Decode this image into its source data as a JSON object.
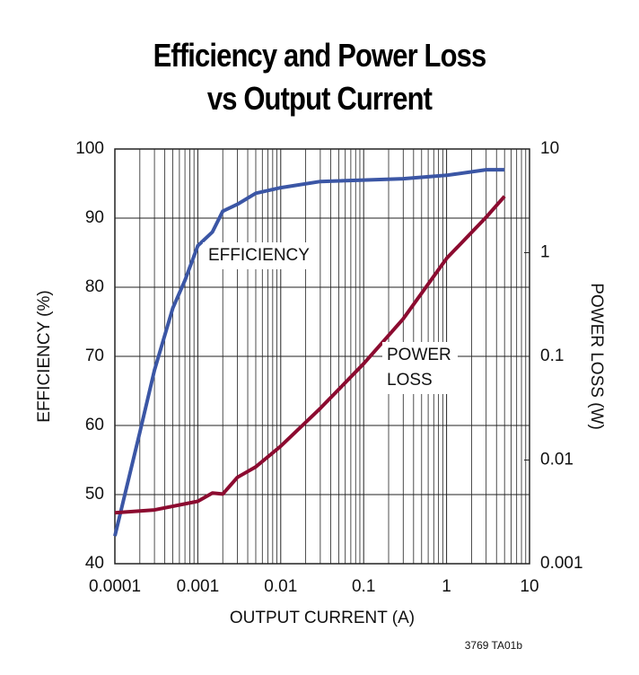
{
  "chart_data": {
    "type": "line",
    "title": "Efficiency and Power Loss\nvs Output Current",
    "x_label": "OUTPUT CURRENT (A)",
    "y_label": "EFFICIENCY (%)",
    "y2_label": "POWER LOSS (W)",
    "xlim": [
      0.0001,
      10
    ],
    "xticks": [
      0.0001,
      0.001,
      0.01,
      0.1,
      1,
      10
    ],
    "x_log": true,
    "ylim": [
      40,
      100
    ],
    "yticks": [
      40,
      50,
      60,
      70,
      80,
      90,
      100
    ],
    "y2lim": [
      0.001,
      10
    ],
    "y2ticks": [
      0.001,
      0.01,
      0.1,
      1,
      10
    ],
    "y2_log": true,
    "grid": true,
    "series": [
      {
        "name": "EFFICIENCY",
        "color": "#3b56a5",
        "x": [
          0.0001,
          0.0002,
          0.0003,
          0.0005,
          0.0007,
          0.001,
          0.0015,
          0.002,
          0.003,
          0.005,
          0.01,
          0.03,
          0.1,
          0.3,
          1,
          3,
          5
        ],
        "values": [
          44,
          59,
          68,
          77,
          81,
          86,
          88,
          91,
          92,
          93.6,
          94.4,
          95.3,
          95.5,
          95.7,
          96.2,
          97,
          97
        ]
      },
      {
        "color": "#8c0b30",
        "axis": "y2",
        "x": [
          0.0001,
          0.0003,
          0.001,
          0.0015,
          0.002,
          0.003,
          0.005,
          0.01,
          0.03,
          0.1,
          0.3,
          1,
          3,
          5
        ],
        "values": [
          0.0031,
          0.0033,
          0.004,
          0.0048,
          0.0047,
          0.0068,
          0.0086,
          0.0136,
          0.0315,
          0.085,
          0.23,
          0.88,
          2.2,
          3.5
        ]
      }
    ],
    "annotations": [
      "POWER",
      "LOSS"
    ],
    "footnote": "3769 TA01b"
  }
}
